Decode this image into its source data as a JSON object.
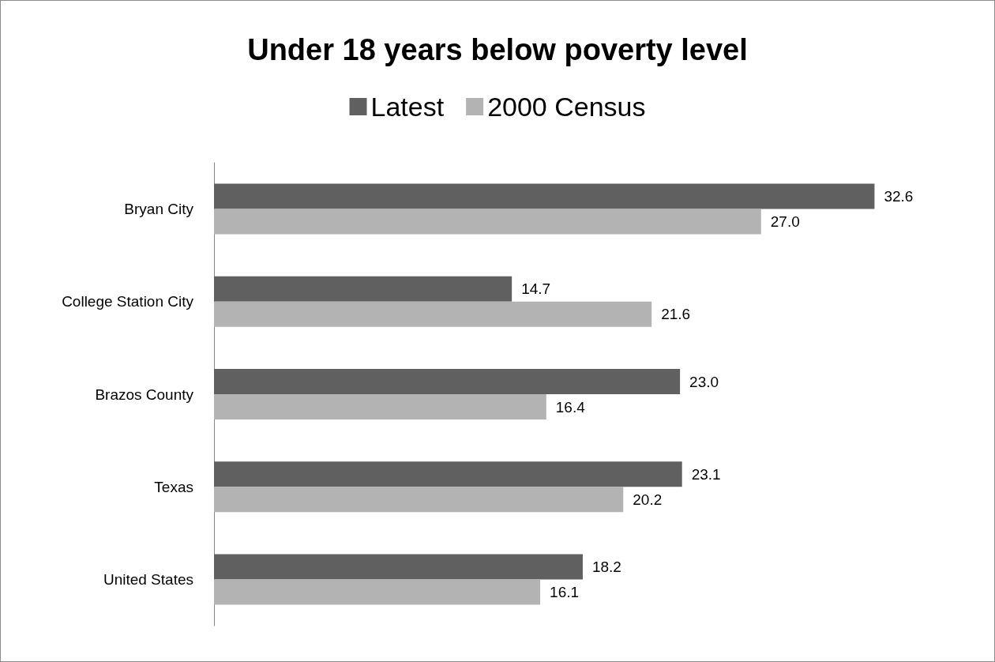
{
  "chart_data": {
    "type": "bar",
    "orientation": "horizontal",
    "title": "Under 18 years below poverty level",
    "categories": [
      "Bryan City",
      "College Station City",
      "Brazos County",
      "Texas",
      "United States"
    ],
    "series": [
      {
        "name": "Latest",
        "color": "#606060",
        "values": [
          32.6,
          14.7,
          23.0,
          23.1,
          18.2
        ],
        "value_labels": [
          "32.6",
          "14.7",
          "23.0",
          "23.1",
          "18.2"
        ]
      },
      {
        "name": "2000 Census",
        "color": "#b3b3b3",
        "values": [
          27.0,
          21.6,
          16.4,
          20.2,
          16.1
        ],
        "value_labels": [
          "27.0",
          "21.6",
          "16.4",
          "20.2",
          "16.1"
        ]
      }
    ],
    "legend": "top",
    "tick_labels": "y"
  }
}
